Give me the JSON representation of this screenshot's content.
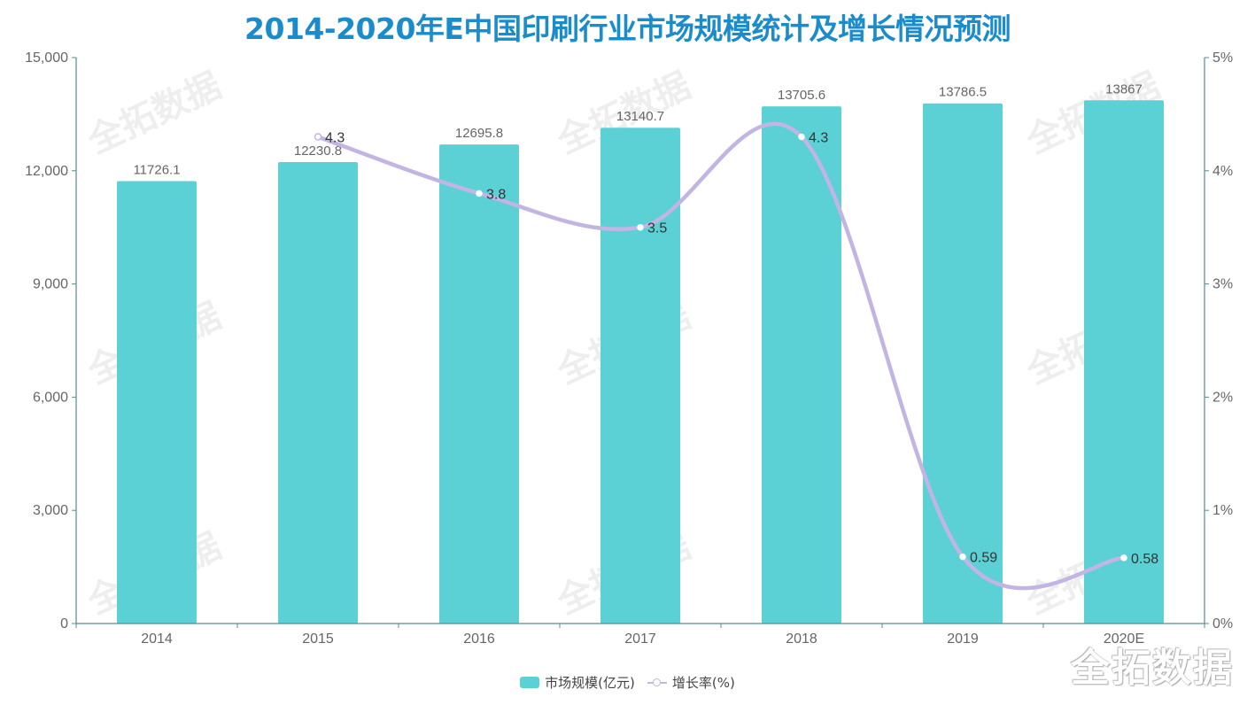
{
  "chart_data": {
    "type": "bar",
    "title": "2014-2020年E中国印刷行业市场规模统计及增长情况预测",
    "categories": [
      "2014",
      "2015",
      "2016",
      "2017",
      "2018",
      "2019",
      "2020E"
    ],
    "series": [
      {
        "name": "市场规模(亿元)",
        "type": "bar",
        "axis": "left",
        "color": "#5bd1d6",
        "values": [
          11726.1,
          12230.8,
          12695.8,
          13140.7,
          13705.6,
          13786.5,
          13867
        ],
        "labels": [
          "11726.1",
          "12230.8",
          "12695.8",
          "13140.7",
          "13705.6",
          "13786.5",
          "13867"
        ]
      },
      {
        "name": "增长率(%)",
        "type": "line",
        "smooth": true,
        "axis": "right",
        "color": "#c3b5e3",
        "values": [
          null,
          4.3,
          3.8,
          3.5,
          4.3,
          0.59,
          0.58
        ],
        "labels": [
          "",
          "4.3",
          "3.8",
          "3.5",
          "4.3",
          "0.59",
          "0.58"
        ]
      }
    ],
    "y_left": {
      "ylim": [
        0,
        15000
      ],
      "ticks": [
        0,
        3000,
        6000,
        9000,
        12000,
        15000
      ],
      "tick_labels": [
        "0",
        "3,000",
        "6,000",
        "9,000",
        "12,000",
        "15,000"
      ]
    },
    "y_right": {
      "ylim": [
        0,
        5
      ],
      "ticks": [
        0,
        1,
        2,
        3,
        4,
        5
      ],
      "tick_labels": [
        "0%",
        "1%",
        "2%",
        "3%",
        "4%",
        "5%"
      ]
    },
    "xlabel": "",
    "ylabel": "",
    "grid": false,
    "legend": {
      "position": "bottom-center",
      "entries": [
        "市场规模(亿元)",
        "增长率(%)"
      ]
    }
  },
  "watermark": {
    "text": "全拓数据"
  },
  "brand": {
    "text": "全拓数据"
  }
}
